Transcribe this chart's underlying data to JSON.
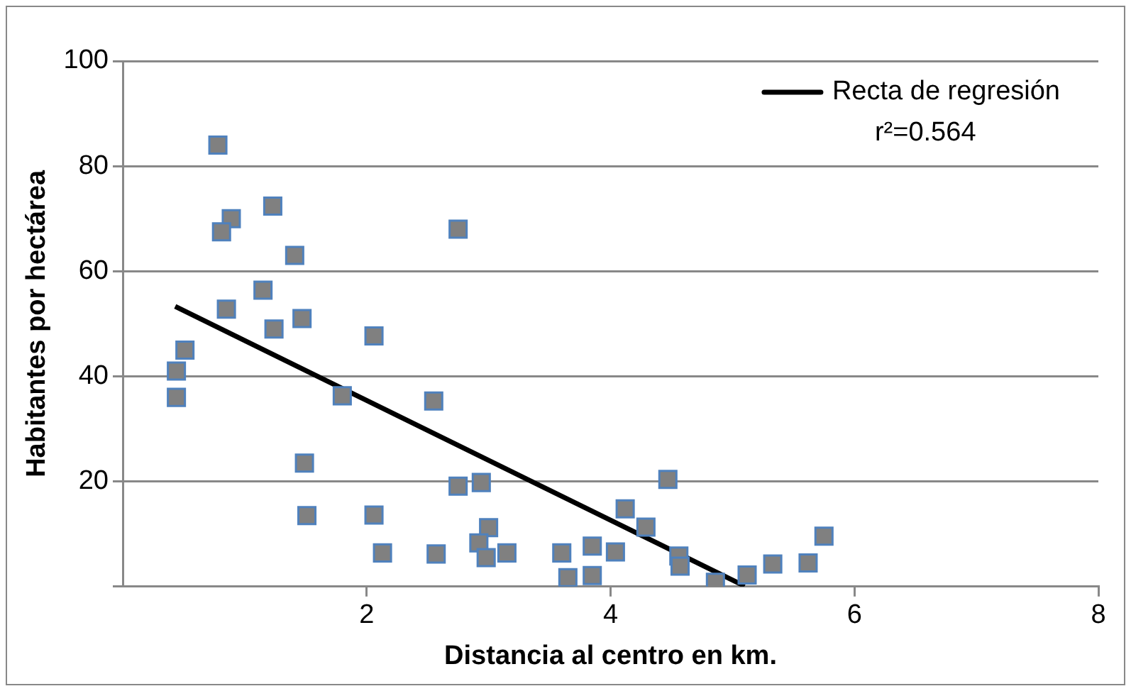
{
  "chart_data": {
    "type": "scatter",
    "xlabel": "Distancia al centro en km.",
    "ylabel": "Habitantes por hectárea",
    "xlim": [
      0,
      8
    ],
    "xticks": [
      2,
      4,
      6,
      8
    ],
    "ylim": [
      0,
      100
    ],
    "yticks": [
      {
        "value": 0,
        "label": null
      },
      20,
      40,
      60,
      80,
      100
    ],
    "grid": "y",
    "legend": "top right",
    "marker": "square",
    "annotations": [
      "r²=0.564"
    ],
    "series": [
      {
        "color": "#808080",
        "x": [
          0.78,
          0.89,
          0.81,
          1.23,
          1.41,
          1.15,
          0.85,
          1.47,
          1.24,
          2.06,
          0.51,
          0.44,
          0.44,
          1.8,
          2.55,
          2.75,
          1.49,
          2.75,
          2.94,
          1.51,
          2.06,
          2.13,
          2.57,
          3.0,
          2.92,
          2.98,
          3.15,
          3.6,
          3.65,
          3.85,
          3.85,
          4.47,
          4.12,
          4.29,
          4.04,
          4.56,
          4.57,
          4.86,
          5.12,
          5.33,
          5.62,
          5.75
        ],
        "values": [
          84,
          70,
          67.5,
          72.4,
          63,
          56.4,
          52.8,
          51,
          49,
          47.7,
          45,
          41,
          36,
          36.3,
          35.3,
          68,
          23.5,
          19.1,
          19.8,
          13.5,
          13.6,
          6.4,
          6.2,
          11.2,
          8.3,
          5.5,
          6.4,
          6.4,
          1.7,
          7.7,
          2.1,
          20.4,
          14.8,
          11.3,
          6.6,
          5.8,
          3.9,
          0.8,
          2.2,
          4.3,
          4.5,
          9.6
        ]
      },
      {
        "type": "line",
        "name": "Recta de regresión",
        "color": "#000000",
        "marker": "none",
        "x": [
          0.43,
          5.1
        ],
        "values": [
          53.3,
          0.1
        ]
      }
    ]
  }
}
